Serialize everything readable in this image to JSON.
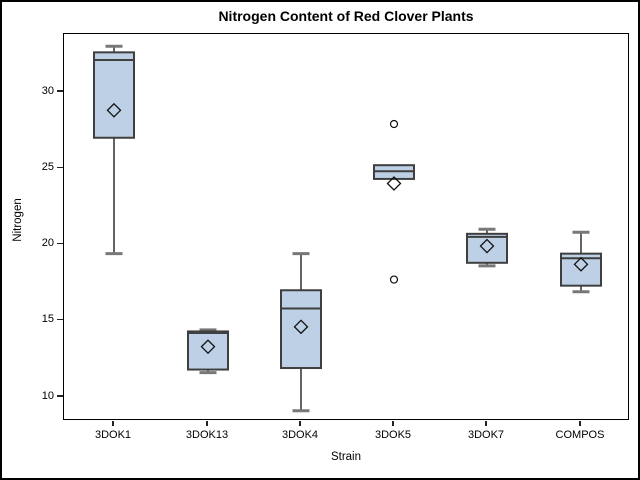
{
  "window": {
    "background": "#ffffff"
  },
  "chart_data": {
    "type": "box",
    "title": "Nitrogen Content of Red Clover Plants",
    "xlabel": "Strain",
    "ylabel": "Nitrogen",
    "categories": [
      "3DOK1",
      "3DOK13",
      "3DOK4",
      "3DOK5",
      "3DOK7",
      "COMPOS"
    ],
    "yticks": [
      10,
      15,
      20,
      25,
      30
    ],
    "ylim": [
      8.2,
      33.8
    ],
    "grid": false,
    "legend": false,
    "boxes": [
      {
        "category": "3DOK1",
        "whisker_low": 19.4,
        "q1": 27.0,
        "median": 32.1,
        "q3": 32.6,
        "whisker_high": 33.0,
        "mean": 28.8,
        "outliers": []
      },
      {
        "category": "3DOK13",
        "whisker_low": 11.6,
        "q1": 11.8,
        "median": 14.2,
        "q3": 14.3,
        "whisker_high": 14.4,
        "mean": 13.3,
        "outliers": []
      },
      {
        "category": "3DOK4",
        "whisker_low": 9.1,
        "q1": 11.9,
        "median": 15.8,
        "q3": 17.0,
        "whisker_high": 19.4,
        "mean": 14.6,
        "outliers": []
      },
      {
        "category": "3DOK5",
        "whisker_low": 24.3,
        "q1": 24.3,
        "median": 24.8,
        "q3": 25.2,
        "whisker_high": 25.2,
        "mean": 24.0,
        "outliers": [
          17.7,
          27.9
        ]
      },
      {
        "category": "3DOK7",
        "whisker_low": 18.6,
        "q1": 18.8,
        "median": 20.5,
        "q3": 20.7,
        "whisker_high": 21.0,
        "mean": 19.9,
        "outliers": []
      },
      {
        "category": "COMPOS",
        "whisker_low": 16.9,
        "q1": 17.3,
        "median": 19.1,
        "q3": 19.4,
        "whisker_high": 20.8,
        "mean": 18.7,
        "outliers": []
      }
    ],
    "colors": {
      "box_fill": "#bdd0e6",
      "box_border": "#3f3f3f",
      "median": "#3f3f3f",
      "whisker_stem": "#222222",
      "whisker_cap": "#787878",
      "marker_stroke": "#111111",
      "outlier_fill": "#ffffff",
      "frame": "#000000",
      "text": "#000000"
    }
  }
}
